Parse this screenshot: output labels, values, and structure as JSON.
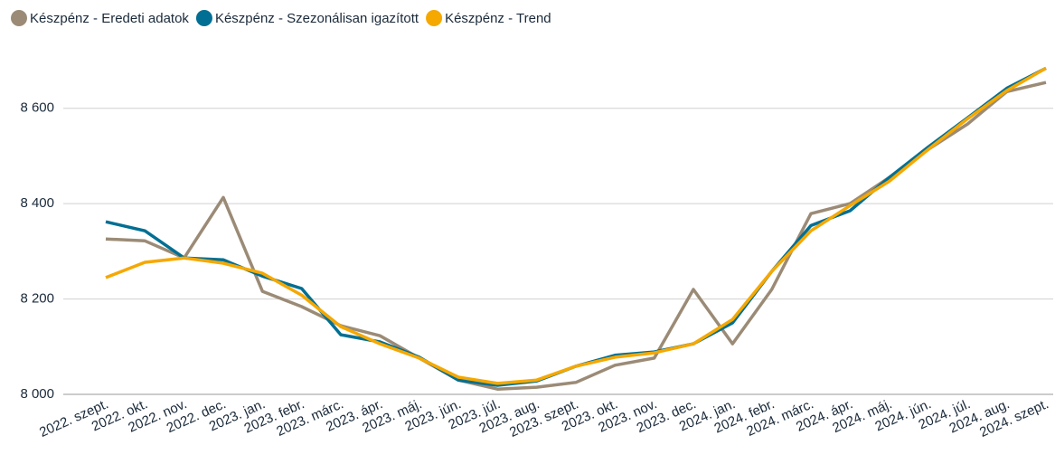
{
  "chart_data": {
    "type": "line",
    "categories": [
      "2022. szept.",
      "2022. okt.",
      "2022. nov.",
      "2022. dec.",
      "2023. jan.",
      "2023. febr.",
      "2023. márc.",
      "2023. ápr.",
      "2023. máj.",
      "2023. jún.",
      "2023. júl.",
      "2023. aug.",
      "2023. szept.",
      "2023. okt.",
      "2023. nov.",
      "2023. dec.",
      "2024. jan.",
      "2024. febr.",
      "2024. márc.",
      "2024. ápr.",
      "2024. máj.",
      "2024. jún.",
      "2024. júl.",
      "2024. aug.",
      "2024. szept."
    ],
    "series": [
      {
        "name": "Készpénz - Eredeti adatok",
        "color": "#9b8b76",
        "values": [
          8326,
          8322,
          8286,
          8413,
          8216,
          8184,
          8144,
          8123,
          8076,
          8030,
          8011,
          8015,
          8025,
          8061,
          8076,
          8220,
          8106,
          8220,
          8379,
          8400,
          8455,
          8514,
          8567,
          8635,
          8654
        ]
      },
      {
        "name": "Készpénz - Szezonálisan igazított",
        "color": "#006f93",
        "values": [
          8362,
          8343,
          8286,
          8282,
          8248,
          8222,
          8125,
          8110,
          8078,
          8030,
          8019,
          8028,
          8059,
          8082,
          8089,
          8106,
          8150,
          8258,
          8354,
          8385,
          8455,
          8519,
          8580,
          8642,
          8684
        ]
      },
      {
        "name": "Készpénz - Trend",
        "color": "#f5a800",
        "values": [
          8245,
          8277,
          8286,
          8275,
          8254,
          8208,
          8142,
          8106,
          8076,
          8036,
          8023,
          8030,
          8059,
          8078,
          8087,
          8106,
          8157,
          8258,
          8343,
          8396,
          8447,
          8514,
          8578,
          8637,
          8684
        ]
      }
    ],
    "ylim": [
      8000,
      8700
    ],
    "yticks": [
      {
        "value": 8000,
        "label": "8 000"
      },
      {
        "value": 8200,
        "label": "8 200"
      },
      {
        "value": 8400,
        "label": "8 400"
      },
      {
        "value": 8600,
        "label": "8 600"
      }
    ],
    "grid": true,
    "legend": "top"
  }
}
